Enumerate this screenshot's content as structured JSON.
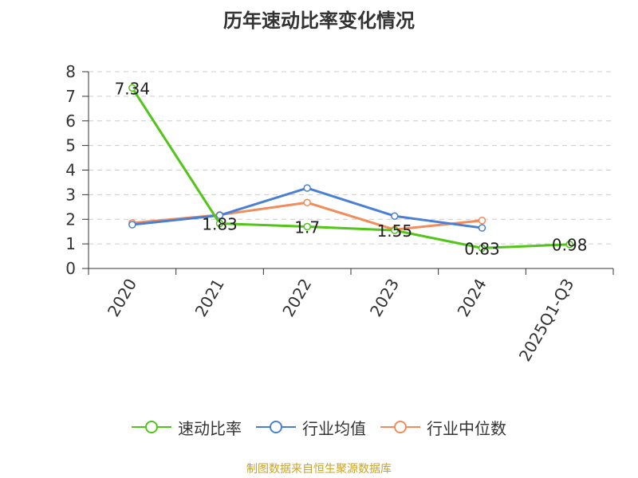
{
  "title": "历年速动比率变化情况",
  "source": "制图数据来自恒生聚源数据库",
  "chart_data": {
    "type": "line",
    "categories": [
      "2020",
      "2021",
      "2022",
      "2023",
      "2024",
      "2025Q1-Q3"
    ],
    "ylim": [
      0,
      8
    ],
    "yticks": [
      "0",
      "1",
      "2",
      "3",
      "4",
      "5",
      "6",
      "7",
      "8"
    ],
    "grid": true,
    "legend_position": "bottom",
    "series": [
      {
        "name": "速动比率",
        "color": "#52c41a",
        "values": [
          7.34,
          1.83,
          1.7,
          1.55,
          0.83,
          0.98
        ],
        "labels": [
          "7.34",
          "1.83",
          "1.7",
          "1.55",
          "0.83",
          "0.98"
        ]
      },
      {
        "name": "行业均值",
        "color": "#4a7fd6",
        "values": [
          1.78,
          2.16,
          3.27,
          2.13,
          1.65,
          null
        ]
      },
      {
        "name": "行业中位数",
        "color": "#f28c5a",
        "values": [
          1.85,
          2.18,
          2.68,
          1.58,
          1.95,
          null
        ]
      }
    ]
  }
}
